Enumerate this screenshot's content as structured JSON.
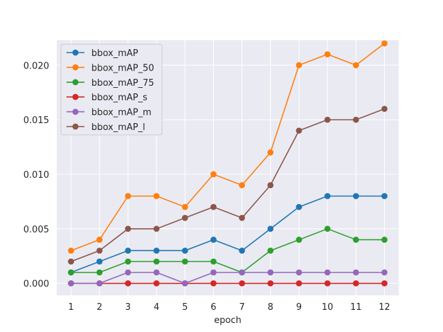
{
  "chart_data": {
    "type": "line",
    "xlabel": "epoch",
    "ylabel": "",
    "x": [
      1,
      2,
      3,
      4,
      5,
      6,
      7,
      8,
      9,
      10,
      11,
      12
    ],
    "xlim": [
      0.5,
      12.5
    ],
    "ylim": [
      -0.0011,
      0.0223
    ],
    "yticks": [
      0.0,
      0.005,
      0.01,
      0.015,
      0.02
    ],
    "ytick_labels": [
      "0.000",
      "0.005",
      "0.010",
      "0.015",
      "0.020"
    ],
    "grid": true,
    "background": "#eaeaf2",
    "legend_position": "top-left",
    "series": [
      {
        "name": "bbox_mAP",
        "color": "#1f77b4",
        "values": [
          0.001,
          0.002,
          0.003,
          0.003,
          0.003,
          0.004,
          0.003,
          0.005,
          0.007,
          0.008,
          0.008,
          0.008
        ]
      },
      {
        "name": "bbox_mAP_50",
        "color": "#ff7f0e",
        "values": [
          0.003,
          0.004,
          0.008,
          0.008,
          0.007,
          0.01,
          0.009,
          0.012,
          0.02,
          0.021,
          0.02,
          0.022
        ]
      },
      {
        "name": "bbox_mAP_75",
        "color": "#2ca02c",
        "values": [
          0.001,
          0.001,
          0.002,
          0.002,
          0.002,
          0.002,
          0.001,
          0.003,
          0.004,
          0.005,
          0.004,
          0.004
        ]
      },
      {
        "name": "bbox_mAP_s",
        "color": "#d62728",
        "values": [
          0.0,
          0.0,
          0.0,
          0.0,
          0.0,
          0.0,
          0.0,
          0.0,
          0.0,
          0.0,
          0.0,
          0.0
        ]
      },
      {
        "name": "bbox_mAP_m",
        "color": "#9467bd",
        "values": [
          0.0,
          0.0,
          0.001,
          0.001,
          0.0,
          0.001,
          0.001,
          0.001,
          0.001,
          0.001,
          0.001,
          0.001
        ]
      },
      {
        "name": "bbox_mAP_l",
        "color": "#8c564b",
        "values": [
          0.002,
          0.003,
          0.005,
          0.005,
          0.006,
          0.007,
          0.006,
          0.009,
          0.014,
          0.015,
          0.015,
          0.016
        ]
      }
    ]
  }
}
